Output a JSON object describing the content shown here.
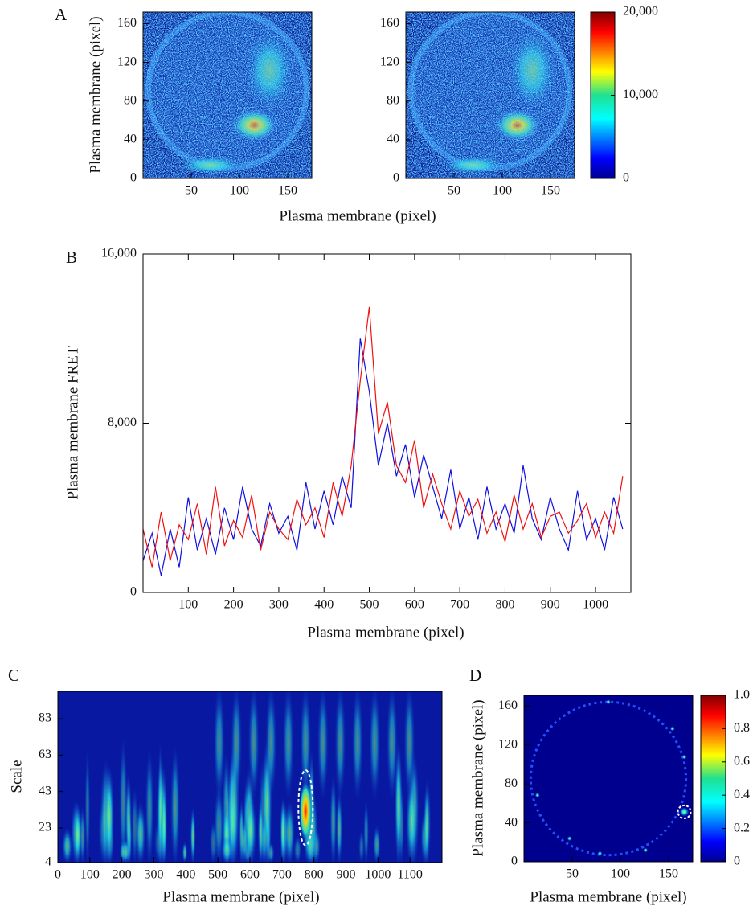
{
  "chart_data": [
    {
      "type": "heatmap",
      "panel": "A",
      "xlabel": "Plasma membrane (pixel)",
      "ylabel": "Plasma membrane (pixel)",
      "images": 2,
      "xlim": [
        0,
        175
      ],
      "ylim": [
        0,
        172
      ],
      "xticks": [
        50,
        100,
        150
      ],
      "yticks": [
        0,
        40,
        80,
        120,
        160
      ],
      "colorbar": {
        "lim": [
          0,
          20000
        ],
        "ticks": [
          0,
          {
            "value": 10000,
            "label": "10,000"
          },
          {
            "value": 20000,
            "label": "20,000"
          }
        ]
      }
    },
    {
      "type": "line",
      "panel": "B",
      "xlabel": "Plasma membrane (pixel)",
      "ylabel": "Plasma membrane FRET",
      "xlim": [
        0,
        1078
      ],
      "ylim": [
        0,
        16000
      ],
      "xticks": [
        100,
        200,
        300,
        400,
        500,
        600,
        700,
        800,
        900,
        1000
      ],
      "yticks": [
        0,
        {
          "value": 8000,
          "label": "8,000"
        },
        {
          "value": 16000,
          "label": "16,000"
        }
      ],
      "x": [
        0,
        20,
        40,
        60,
        80,
        100,
        120,
        140,
        160,
        180,
        200,
        220,
        240,
        260,
        280,
        300,
        320,
        340,
        360,
        380,
        400,
        420,
        440,
        460,
        480,
        500,
        520,
        540,
        560,
        580,
        600,
        620,
        640,
        660,
        680,
        700,
        720,
        740,
        760,
        780,
        800,
        820,
        840,
        860,
        880,
        900,
        920,
        940,
        960,
        980,
        1000,
        1020,
        1040,
        1060
      ],
      "series": [
        {
          "color": "#1010e0",
          "values": [
            1500,
            2800,
            800,
            3000,
            1200,
            4500,
            2000,
            3500,
            1800,
            4000,
            2500,
            5000,
            3000,
            2200,
            4200,
            2800,
            3600,
            2000,
            5200,
            3000,
            4800,
            3200,
            5500,
            4000,
            12000,
            9500,
            6000,
            8000,
            5500,
            7000,
            4500,
            6500,
            5000,
            3500,
            5800,
            3000,
            4500,
            2500,
            5000,
            3000,
            4200,
            2800,
            6000,
            3500,
            2500,
            4500,
            3000,
            2000,
            4800,
            2500,
            3500,
            2000,
            4500,
            3000
          ]
        },
        {
          "color": "#f01010",
          "values": [
            3000,
            1200,
            3800,
            1500,
            3200,
            2500,
            4200,
            1800,
            5000,
            2200,
            3400,
            2600,
            4600,
            2000,
            3800,
            3000,
            2500,
            4400,
            3200,
            4000,
            2600,
            5200,
            3600,
            6000,
            10000,
            13500,
            7500,
            9000,
            6000,
            5200,
            7200,
            4000,
            5600,
            4200,
            3000,
            4800,
            3600,
            4400,
            2800,
            3800,
            2400,
            4600,
            3000,
            4200,
            2600,
            3600,
            3800,
            2800,
            3400,
            4200,
            2600,
            3800,
            2800,
            5500
          ]
        }
      ]
    },
    {
      "type": "heatmap",
      "panel": "C",
      "xlabel": "Plasma membrane (pixel)",
      "ylabel": "Scale",
      "xlim": [
        0,
        1200
      ],
      "ylim": [
        4,
        98
      ],
      "xticks": [
        0,
        100,
        200,
        300,
        400,
        500,
        600,
        700,
        800,
        900,
        1000,
        1100
      ],
      "yticks": [
        4,
        23,
        43,
        63,
        83
      ]
    },
    {
      "type": "heatmap",
      "panel": "D",
      "xlabel": "Plasma membrane (pixel)",
      "ylabel": "Plasma membrane (pixel)",
      "xlim": [
        0,
        175
      ],
      "ylim": [
        0,
        171
      ],
      "xticks": [
        50,
        100,
        150
      ],
      "yticks": [
        0,
        40,
        80,
        120,
        160
      ],
      "colorbar": {
        "lim": [
          0,
          1
        ],
        "ticks": [
          0,
          0.2,
          0.4,
          0.6,
          0.8,
          {
            "value": 1,
            "label": "1.0"
          }
        ]
      }
    }
  ]
}
